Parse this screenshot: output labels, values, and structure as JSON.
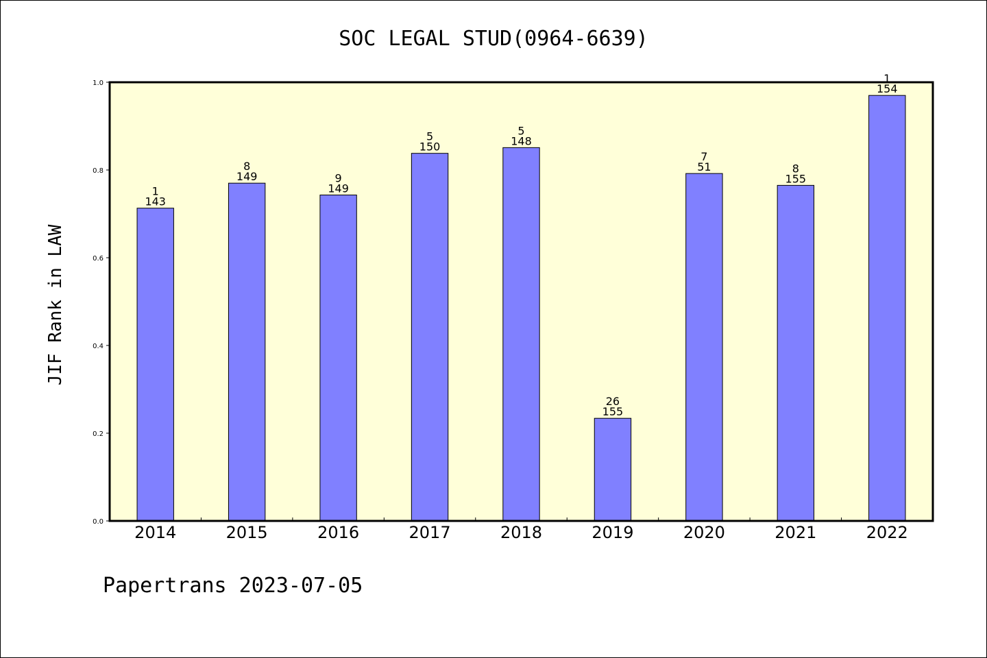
{
  "chart_data": {
    "type": "bar",
    "title": "SOC LEGAL STUD(0964-6639)",
    "ylabel": "JIF Rank in LAW",
    "xlabel": "",
    "ylim": [
      0,
      1.0
    ],
    "yticks": [
      "0.0",
      "0.2",
      "0.4",
      "0.6",
      "0.8",
      "1.0"
    ],
    "categories": [
      "2014",
      "2015",
      "2016",
      "2017",
      "2018",
      "2019",
      "2020",
      "2021",
      "2022"
    ],
    "values": [
      0.713,
      0.77,
      0.743,
      0.838,
      0.851,
      0.234,
      0.792,
      0.765,
      0.97
    ],
    "labels_top": [
      "1",
      "8",
      "9",
      "5",
      "5",
      "26",
      "7",
      "8",
      "1"
    ],
    "labels_bottom": [
      "143",
      "149",
      "149",
      "150",
      "148",
      "155",
      "51",
      "155",
      "154"
    ],
    "colors": {
      "plot_bg": "#ffffd9",
      "bar": "#8080ff",
      "axis": "#000000"
    },
    "grid": false,
    "footer": "Papertrans 2023-07-05"
  }
}
